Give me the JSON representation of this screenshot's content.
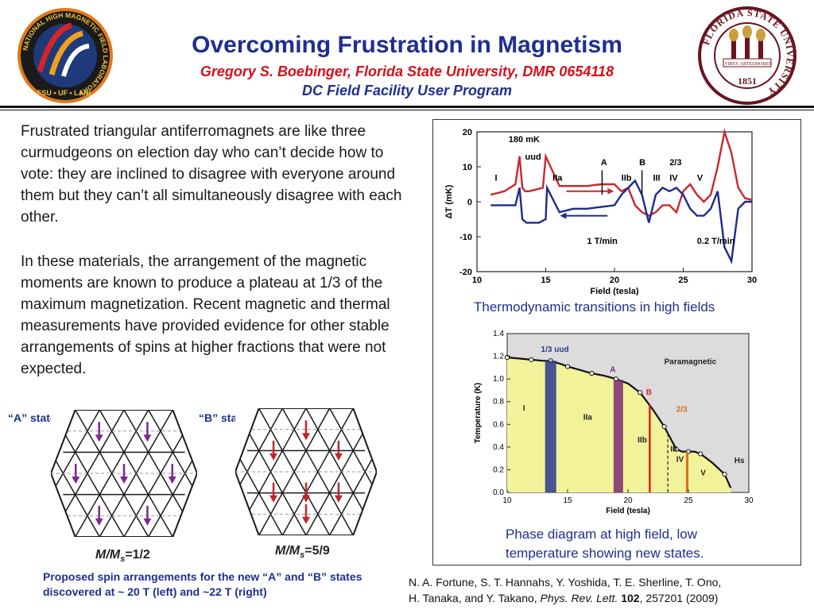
{
  "header": {
    "title": "Overcoming Frustration in Magnetism",
    "author": "Gregory S. Boebinger, Florida State University, DMR 0654118",
    "program": "DC Field Facility User Program"
  },
  "logos": {
    "left": {
      "ring_text": "NATIONAL HIGH MAGNETIC FIELD LABORATORY",
      "bottom_text": "FSU • UF • LANL"
    },
    "right": {
      "ring_text": "FLORIDA STATE UNIVERSITY",
      "banner": [
        "VIRES",
        "ARTES",
        "MORES"
      ],
      "year": "1851"
    }
  },
  "body": {
    "paragraph1": "Frustrated triangular antiferromagnets are like three curmudgeons on election day who can’t decide how to vote: they are inclined to disagree with everyone around them but they can’t all simultaneously disagree with each other.",
    "paragraph2": "In these materials, the arrangement of the magnetic moments are known to produce a plateau at 1/3 of the maximum magnetization. Recent magnetic and thermal measurements have provided evidence for other stable arrangements of spins at higher fractions that were not expected."
  },
  "spin_figures": {
    "a_label": "“A” state",
    "b_label": "“B” state",
    "a_ratio_prefix": "M/M",
    "a_ratio_sub": "s",
    "a_ratio_value": "=1/2",
    "b_ratio_prefix": "M/M",
    "b_ratio_sub": "s",
    "b_ratio_value": "=5/9",
    "caption": "Proposed spin arrangements for the new “A” and “B” states discovered at ~ 20 T (left) and  ~22 T (right)",
    "colors": {
      "a_arrow": "#7b2a8c",
      "b_arrow": "#c0262b",
      "grid": "#1a1a1a",
      "dashed": "#9a9a9a"
    }
  },
  "chart_data": [
    {
      "type": "line",
      "xlabel": "Field (tesla)",
      "ylabel": "ΔT (mK)",
      "xlim": [
        10,
        30
      ],
      "ylim": [
        -20,
        20
      ],
      "xticks": [
        10,
        15,
        20,
        25,
        30
      ],
      "yticks": [
        20,
        10,
        0,
        -10,
        -20
      ],
      "annotations": [
        "180 mK",
        "uud",
        "A",
        "B",
        "2/3",
        "I",
        "IIa",
        "IIb",
        "III",
        "IV",
        "V",
        "1 T/min",
        "0.2 T/min"
      ],
      "series": [
        {
          "color": "#c8282e",
          "x": [
            11.0,
            12.0,
            12.8,
            13.1,
            13.3,
            13.5,
            13.8,
            14.3,
            14.8,
            15.0,
            16,
            17,
            18,
            19,
            20,
            20.5,
            21,
            21.5,
            22,
            22.5,
            23,
            23.5,
            24,
            24.5,
            25,
            25.5,
            26,
            26.5,
            27,
            27.5,
            28.0,
            28.5,
            29.0,
            29.5,
            30.0
          ],
          "y": [
            2,
            3,
            5,
            13,
            4,
            3,
            3,
            3.5,
            4,
            13,
            4.5,
            4.5,
            4.5,
            5,
            5,
            3,
            4,
            -1,
            -3,
            -4,
            -3,
            -1,
            -1,
            -3,
            3,
            5,
            2,
            0,
            2,
            10,
            20,
            14,
            4,
            1,
            0.5
          ]
        },
        {
          "color": "#1f2b8a",
          "x": [
            11.0,
            12.0,
            12.8,
            13.1,
            13.3,
            13.6,
            14.0,
            14.5,
            15.0,
            15.1,
            16,
            17,
            18,
            19,
            20,
            20.5,
            21,
            21.5,
            22,
            22.5,
            23,
            23.5,
            24,
            24.5,
            25,
            25.5,
            26,
            26.5,
            27,
            27.5,
            28.0,
            28.5,
            29.0,
            29.5,
            30.0
          ],
          "y": [
            -1,
            -1,
            -1,
            4,
            -5,
            -6,
            -6,
            -6,
            -5,
            4,
            -3,
            -2,
            -2,
            -1.5,
            -1,
            2,
            4,
            6,
            2,
            -6,
            2,
            4,
            3,
            4,
            2,
            -2,
            -4,
            -4,
            -2,
            3,
            -13,
            -17,
            -2,
            0,
            0
          ]
        }
      ]
    },
    {
      "type": "area",
      "xlabel": "Field (tesla)",
      "ylabel": "Temperature (K)",
      "xlim": [
        10,
        30
      ],
      "ylim": [
        0.0,
        1.4
      ],
      "xticks": [
        10,
        15,
        20,
        25,
        30
      ],
      "yticks": [
        0.0,
        0.2,
        0.4,
        0.6,
        0.8,
        1.0,
        1.2,
        1.4
      ],
      "region_labels": [
        "Paramagnetic",
        "I",
        "IIa",
        "IIb",
        "III",
        "IV",
        "V",
        "1/3 uud",
        "A",
        "B",
        "2/3",
        "Hs"
      ],
      "boundary": {
        "x": [
          10,
          11,
          12,
          13,
          13.6,
          14.5,
          15,
          16,
          17,
          18,
          19,
          20,
          21,
          22,
          23,
          23.5,
          24,
          24.5,
          25,
          25.5,
          26,
          27,
          28,
          28.5
        ],
        "y": [
          1.19,
          1.18,
          1.17,
          1.16,
          1.16,
          1.13,
          1.11,
          1.08,
          1.05,
          1.03,
          1.0,
          0.96,
          0.88,
          0.74,
          0.58,
          0.48,
          0.38,
          0.36,
          0.36,
          0.36,
          0.34,
          0.26,
          0.16,
          0.04
        ]
      },
      "phase_lines_x": {
        "uud": 13.6,
        "A": 19.2,
        "B": 21.8,
        "2/3": 24.9,
        "III_IV": 23.3
      },
      "colors": {
        "ordered": "#f2f29a",
        "paramagnetic": "#dcdcdc",
        "uud": "#2a3a8f",
        "A": "#7b2a6e",
        "B": "#d8262a",
        "two_thirds": "#e26a1e",
        "uud_label": "#2a3a8f",
        "a_label": "#7b2a6e",
        "b_label": "#d8262a",
        "two_thirds_label": "#e26a1e"
      }
    }
  ],
  "figure_captions": {
    "top": "Thermodynamic transitions in high fields",
    "bottom": "Phase diagram at high field, low temperature showing new states."
  },
  "reference": {
    "line1": "N. A. Fortune, S. T. Hannahs, Y. Yoshida, T. E. Sherline, T. Ono,",
    "line2_authors": "H. Tanaka, and Y. Takano, ",
    "journal": "Phys. Rev. Lett.",
    "volume": "102",
    "pages_year": ", 257201 (2009)"
  }
}
